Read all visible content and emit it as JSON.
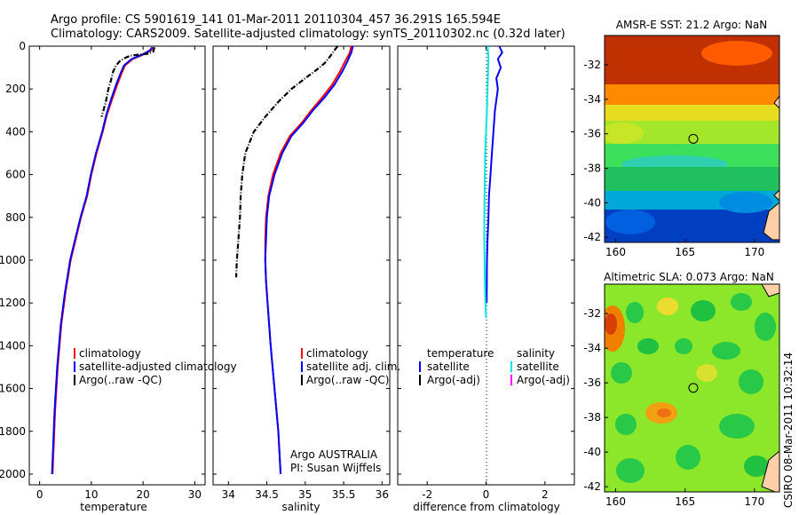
{
  "header": {
    "line1": "Argo profile: CS 5901619_141 01-Mar-2011 20110304_457 36.291S 165.594E",
    "line2": "Climatology: CARS2009. Satellite-adjusted climatology: synTS_20110302.nc (0.32d later)"
  },
  "footer": {
    "stamp": "CSIRO 08-Mar-2011 10:32:14"
  },
  "colors": {
    "climatology": "#ff0000",
    "satellite": "#0000ff",
    "argo": "#000000",
    "salinity_satellite": "#00e5e5",
    "salinity_argo": "#ff00ff"
  },
  "chart_data": [
    {
      "type": "line",
      "id": "temperature",
      "xlabel": "temperature",
      "ylabel": "",
      "xlim": [
        -2,
        32
      ],
      "ylim": [
        2050,
        0
      ],
      "xticks": [
        0,
        10,
        20,
        30
      ],
      "yticks": [
        0,
        200,
        400,
        600,
        800,
        1000,
        1200,
        1400,
        1600,
        1800,
        2000
      ],
      "legend": [
        "climatology",
        "satellite-adjusted climatology",
        "Argo(..raw -QC)"
      ],
      "series": [
        {
          "name": "climatology",
          "color": "#ff0000",
          "style": "solid",
          "x": [
            22.0,
            21.5,
            20.0,
            18.0,
            16.5,
            15.8,
            15.0,
            14.0,
            13.0,
            12.2,
            11.0,
            10.0,
            9.2,
            8.0,
            7.0,
            6.0,
            5.0,
            4.2,
            3.5,
            3.0,
            2.5
          ],
          "y": [
            5,
            20,
            40,
            60,
            90,
            130,
            180,
            250,
            320,
            400,
            500,
            600,
            700,
            800,
            900,
            1000,
            1150,
            1300,
            1500,
            1700,
            2000
          ]
        },
        {
          "name": "satellite-adjusted climatology",
          "color": "#0000ff",
          "style": "solid",
          "x": [
            21.8,
            21.3,
            19.8,
            17.8,
            16.3,
            15.6,
            14.8,
            13.8,
            12.9,
            12.1,
            10.9,
            9.9,
            9.1,
            7.9,
            6.9,
            5.9,
            4.9,
            4.1,
            3.4,
            2.9,
            2.4
          ],
          "y": [
            5,
            20,
            40,
            60,
            90,
            130,
            180,
            250,
            320,
            400,
            500,
            600,
            700,
            800,
            900,
            1000,
            1150,
            1300,
            1500,
            1700,
            2000
          ]
        },
        {
          "name": "Argo(..raw -QC)",
          "color": "#000000",
          "style": "dashdot",
          "x": [
            22.2,
            22.0,
            21.0,
            19.0,
            17.5,
            16.5,
            15.5,
            14.8,
            14.2,
            13.8,
            13.3,
            12.8,
            12.0
          ],
          "y": [
            5,
            25,
            35,
            40,
            45,
            55,
            70,
            90,
            120,
            160,
            200,
            260,
            330
          ]
        }
      ]
    },
    {
      "type": "line",
      "id": "salinity",
      "xlabel": "salinity",
      "ylabel": "",
      "xlim": [
        33.8,
        36.1
      ],
      "ylim": [
        2050,
        0
      ],
      "xticks": [
        34,
        34.5,
        35,
        35.5,
        36
      ],
      "yticks": [
        0,
        200,
        400,
        600,
        800,
        1000,
        1200,
        1400,
        1600,
        1800,
        2000
      ],
      "legend": [
        "climatology",
        "satellite adj. clim.",
        "Argo(..raw -QC)"
      ],
      "annotation": [
        "Argo AUSTRALIA",
        "PI: Susan Wijffels"
      ],
      "series": [
        {
          "name": "climatology",
          "color": "#ff0000",
          "style": "solid",
          "x": [
            35.6,
            35.58,
            35.52,
            35.45,
            35.35,
            35.22,
            35.08,
            34.95,
            34.8,
            34.68,
            34.58,
            34.52,
            34.49,
            34.48,
            34.48,
            34.49,
            34.51,
            34.55,
            34.6,
            34.65,
            34.68
          ],
          "y": [
            0,
            30,
            70,
            120,
            180,
            240,
            300,
            360,
            420,
            500,
            600,
            700,
            800,
            900,
            1000,
            1100,
            1200,
            1400,
            1600,
            1800,
            2000
          ]
        },
        {
          "name": "satellite adj. clim.",
          "color": "#0000ff",
          "style": "solid",
          "x": [
            35.62,
            35.6,
            35.55,
            35.48,
            35.38,
            35.25,
            35.1,
            34.97,
            34.82,
            34.7,
            34.6,
            34.53,
            34.5,
            34.49,
            34.48,
            34.49,
            34.51,
            34.55,
            34.6,
            34.65,
            34.68
          ],
          "y": [
            0,
            30,
            70,
            120,
            180,
            240,
            300,
            360,
            420,
            500,
            600,
            700,
            800,
            900,
            1000,
            1100,
            1200,
            1400,
            1600,
            1800,
            2000
          ]
        },
        {
          "name": "Argo(..raw -QC)",
          "color": "#000000",
          "style": "dashdot",
          "x": [
            35.42,
            35.38,
            35.32,
            35.25,
            35.15,
            35.0,
            34.82,
            34.65,
            34.48,
            34.33,
            34.22,
            34.18,
            34.16,
            34.15,
            34.13,
            34.11,
            34.1
          ],
          "y": [
            0,
            20,
            50,
            80,
            110,
            150,
            200,
            260,
            330,
            400,
            500,
            600,
            700,
            800,
            900,
            1000,
            1080
          ]
        }
      ]
    },
    {
      "type": "line",
      "id": "difference",
      "xlabel": "difference from climatology",
      "ylabel": "",
      "xlim": [
        -3,
        3
      ],
      "ylim": [
        2050,
        0
      ],
      "xticks": [
        -2,
        0,
        2
      ],
      "yticks": [
        0,
        200,
        400,
        600,
        800,
        1000,
        1200,
        1400,
        1600,
        1800,
        2000
      ],
      "legend_titles": [
        "temperature",
        "salinity"
      ],
      "legend_temperature": [
        "satellite",
        "Argo(-adj)"
      ],
      "legend_salinity": [
        "satellite",
        "Argo(-adj)"
      ],
      "series": [
        {
          "name": "temperature satellite",
          "color": "#0000ff",
          "style": "solid",
          "x": [
            0.45,
            0.55,
            0.4,
            0.5,
            0.35,
            0.4,
            0.3,
            0.25,
            0.2,
            0.15,
            0.1,
            0.08,
            0.05,
            0.03,
            0.02
          ],
          "y": [
            0,
            30,
            60,
            100,
            150,
            200,
            300,
            400,
            500,
            600,
            700,
            800,
            900,
            1000,
            1200
          ]
        },
        {
          "name": "salinity satellite",
          "color": "#00e5e5",
          "style": "solid",
          "x": [
            0.05,
            0.08,
            0.07,
            0.05,
            0.03,
            0.0,
            -0.03,
            -0.04,
            -0.05,
            -0.06,
            -0.06,
            -0.05,
            -0.04,
            -0.02,
            0.0
          ],
          "y": [
            0,
            50,
            100,
            200,
            300,
            400,
            500,
            600,
            700,
            800,
            900,
            1000,
            1100,
            1200,
            1270
          ]
        }
      ]
    },
    {
      "type": "heatmap",
      "id": "sst-map",
      "title": "AMSR-E SST: 21.2 Argo: NaN",
      "xticks": [
        160,
        165,
        170
      ],
      "yticks": [
        -32,
        -34,
        -36,
        -38,
        -40,
        -42
      ],
      "xlim": [
        159.2,
        171.8
      ],
      "ylim": [
        -42.3,
        -30.3
      ],
      "argo_position": [
        165.594,
        -36.291
      ]
    },
    {
      "type": "heatmap",
      "id": "sla-map",
      "title": "Altimetric SLA: 0.073 Argo: NaN",
      "xticks": [
        160,
        165,
        170
      ],
      "yticks": [
        -32,
        -34,
        -36,
        -38,
        -40,
        -42
      ],
      "xlim": [
        159.2,
        171.8
      ],
      "ylim": [
        -42.3,
        -30.3
      ],
      "argo_position": [
        165.594,
        -36.291
      ]
    }
  ]
}
